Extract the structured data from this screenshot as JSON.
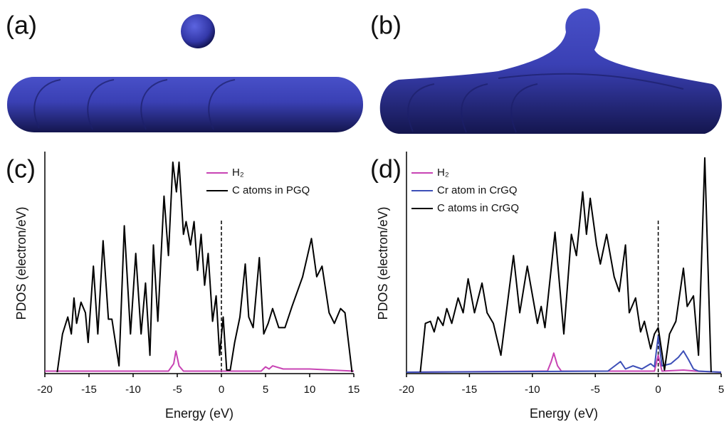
{
  "panel_labels": [
    "(a)",
    "(b)",
    "(c)",
    "(d)"
  ],
  "chart_data": [
    {
      "type": "line",
      "xlabel": "Energy (eV)",
      "ylabel": "PDOS (electron/eV)",
      "xlim": [
        -20,
        15
      ],
      "xticks": [
        -20,
        -15,
        -10,
        -5,
        0,
        5,
        10,
        15
      ],
      "ylim": [
        0,
        10.4
      ],
      "vline": 0,
      "legend": "upper right",
      "series": [
        {
          "name": "H₂",
          "color": "#c844b4",
          "x": [
            -20,
            -6,
            -5.4,
            -5.15,
            -4.8,
            -4.3,
            4.5,
            5,
            5.4,
            5.8,
            7,
            10,
            15
          ],
          "values": [
            0.05,
            0.05,
            0.4,
            1.0,
            0.3,
            0.05,
            0.05,
            0.25,
            0.15,
            0.3,
            0.15,
            0.15,
            0.05
          ]
        },
        {
          "name": "C atoms in PGQ",
          "color": "#000000",
          "x": [
            -18.6,
            -18.0,
            -17.4,
            -17.0,
            -16.7,
            -16.4,
            -15.9,
            -15.4,
            -15.1,
            -14.5,
            -14.0,
            -13.4,
            -12.8,
            -12.4,
            -11.6,
            -11.0,
            -10.3,
            -9.7,
            -9.1,
            -8.6,
            -8.1,
            -7.7,
            -7.2,
            -6.5,
            -6.0,
            -5.5,
            -5.1,
            -4.8,
            -4.3,
            -4.0,
            -3.5,
            -3.1,
            -2.7,
            -2.3,
            -1.9,
            -1.5,
            -1.0,
            -0.6,
            -0.2,
            0.2,
            0.6,
            1.0,
            1.5,
            2.1,
            2.7,
            3.1,
            3.6,
            4.3,
            4.8,
            5.3,
            5.8,
            6.5,
            7.2,
            8.0,
            9.2,
            10.2,
            10.8,
            11.4,
            12.2,
            12.8,
            13.5,
            14.0,
            14.8
          ],
          "values": [
            0,
            1.8,
            2.6,
            1.8,
            3.5,
            2.3,
            3.3,
            2.8,
            1.4,
            5.0,
            1.8,
            6.2,
            2.5,
            2.5,
            0.3,
            6.9,
            1.8,
            5.6,
            1.8,
            4.2,
            0.8,
            6.0,
            2.4,
            8.3,
            5.5,
            9.9,
            8.5,
            9.9,
            6.5,
            7.1,
            6.0,
            7.1,
            4.8,
            6.5,
            4.1,
            5.6,
            2.4,
            3.6,
            0.8,
            2.6,
            0.1,
            0.1,
            1.4,
            2.6,
            5.1,
            2.6,
            2.1,
            5.4,
            1.8,
            2.3,
            3.0,
            2.1,
            2.1,
            3.1,
            4.5,
            6.3,
            4.5,
            5.0,
            2.8,
            2.3,
            3.0,
            2.8,
            0
          ]
        }
      ]
    },
    {
      "type": "line",
      "xlabel": "Energy (eV)",
      "ylabel": "PDOS (electron/eV)",
      "xlim": [
        -20,
        5
      ],
      "xticks": [
        -20,
        -15,
        -10,
        -5,
        0,
        5
      ],
      "ylim": [
        0,
        10.4
      ],
      "vline": 0,
      "legend": "upper left",
      "series": [
        {
          "name": "H₂",
          "color": "#c844b4",
          "x": [
            -20,
            -8.8,
            -8.5,
            -8.3,
            -8.0,
            -7.7,
            -0.3,
            0,
            0.3,
            2,
            3,
            5
          ],
          "values": [
            0,
            0.05,
            0.5,
            0.9,
            0.3,
            0.05,
            0.05,
            0.8,
            0.05,
            0.1,
            0.05,
            0
          ]
        },
        {
          "name": "Cr atom in CrGQ",
          "color": "#3d4fb8",
          "x": [
            -20,
            -4,
            -3,
            -2.6,
            -2,
            -1.3,
            -0.6,
            -0.3,
            0,
            0.3,
            1,
            1.6,
            2,
            2.4,
            2.8,
            3.2,
            5
          ],
          "values": [
            0,
            0.05,
            0.5,
            0.15,
            0.3,
            0.15,
            0.4,
            0.25,
            1.7,
            0.3,
            0.4,
            0.7,
            1.0,
            0.6,
            0.15,
            0.05,
            0
          ]
        },
        {
          "name": "C atoms in CrGQ",
          "color": "#000000",
          "x": [
            -18.9,
            -18.5,
            -18.1,
            -17.8,
            -17.5,
            -17.1,
            -16.8,
            -16.4,
            -15.9,
            -15.5,
            -15.1,
            -14.6,
            -14.0,
            -13.6,
            -13.1,
            -12.5,
            -11.5,
            -11.0,
            -10.4,
            -9.6,
            -9.3,
            -9.0,
            -8.2,
            -7.5,
            -6.9,
            -6.5,
            -6.0,
            -5.7,
            -5.4,
            -4.9,
            -4.6,
            -4.1,
            -3.5,
            -3.1,
            -2.6,
            -2.3,
            -1.8,
            -1.4,
            -1.1,
            -0.6,
            -0.3,
            0.0,
            0.5,
            0.9,
            1.4,
            2.0,
            2.3,
            2.8,
            3.2,
            3.7,
            4.2
          ],
          "values": [
            0,
            2.3,
            2.4,
            1.9,
            2.6,
            2.2,
            3.0,
            2.3,
            3.5,
            2.8,
            4.4,
            2.8,
            4.2,
            2.8,
            2.3,
            0.8,
            5.5,
            2.8,
            5.0,
            2.3,
            3.1,
            2.1,
            6.6,
            1.8,
            6.5,
            5.5,
            8.5,
            6.5,
            8.2,
            6.0,
            5.1,
            6.5,
            4.5,
            3.8,
            6.0,
            2.8,
            3.5,
            1.9,
            2.4,
            1.1,
            1.8,
            2.1,
            0.1,
            1.8,
            2.4,
            4.9,
            3.1,
            3.6,
            0.8,
            10.1,
            0
          ]
        }
      ]
    }
  ]
}
